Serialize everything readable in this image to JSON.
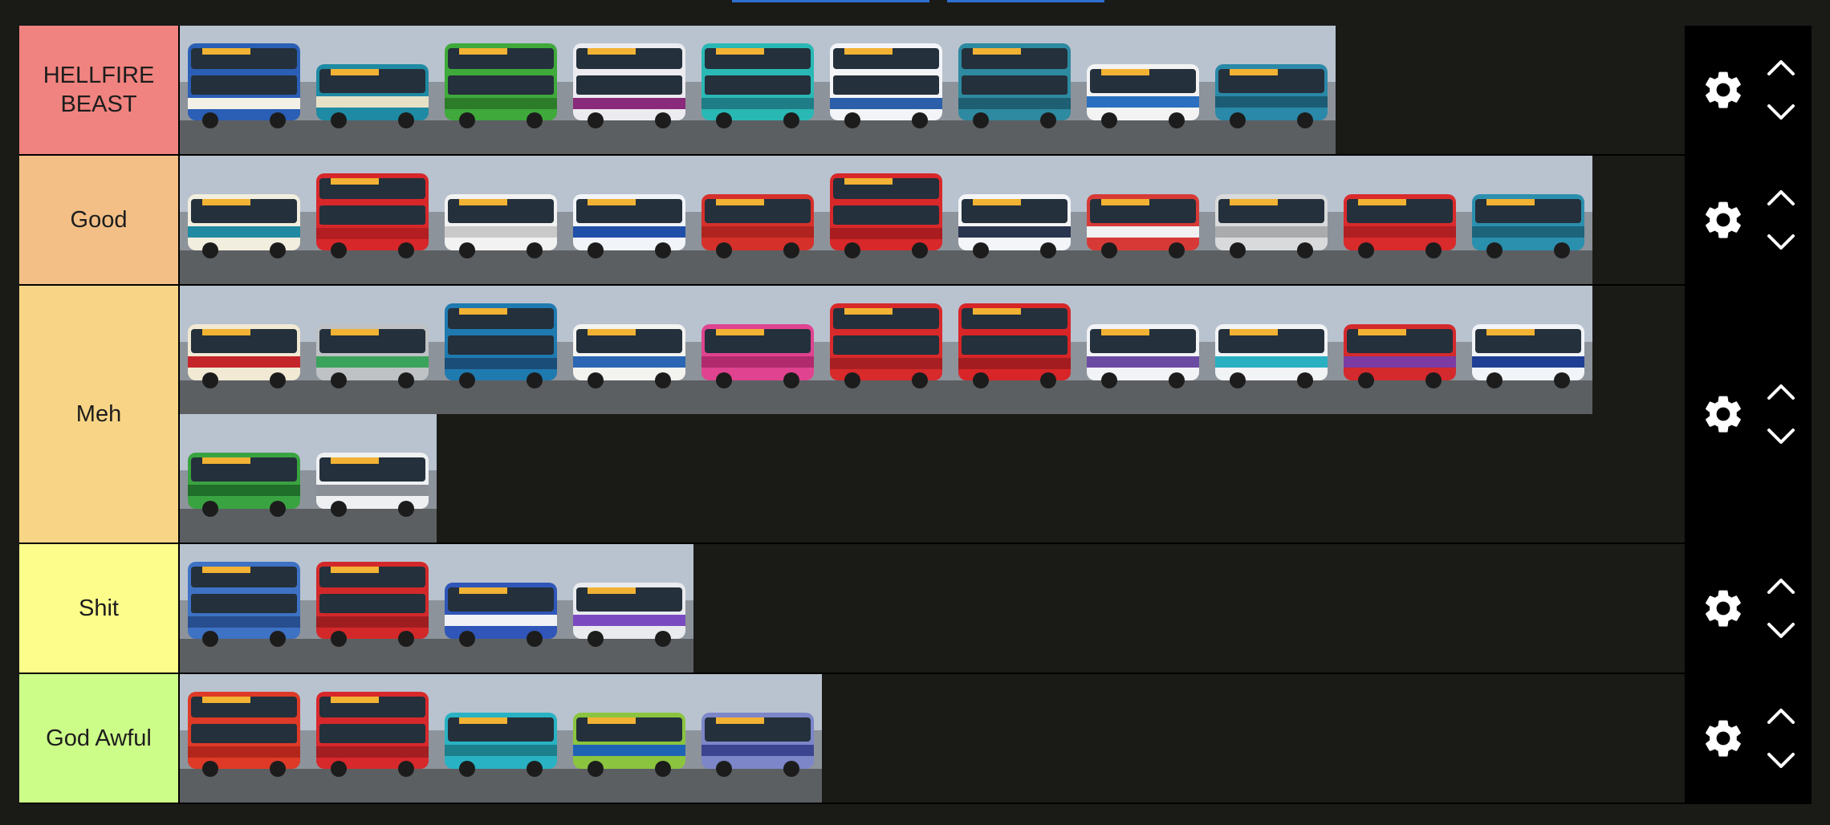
{
  "colors": {
    "background": "#1a1a17",
    "controls": "#000000",
    "icon": "#ffffff"
  },
  "tiers": [
    {
      "label": "HELLFIRE BEAST",
      "color": "#f0837f",
      "items": [
        {
          "body": "#2a5fb5",
          "band": "#f3f0e6",
          "deck": "double"
        },
        {
          "body": "#1e8aa3",
          "band": "#e6e1c6",
          "deck": "single"
        },
        {
          "body": "#3fa93b",
          "band": "#2d7c2a",
          "deck": "double"
        },
        {
          "body": "#ecebf0",
          "band": "#8a2a7a",
          "deck": "double"
        },
        {
          "body": "#2ab8b5",
          "band": "#1e7d86",
          "deck": "double"
        },
        {
          "body": "#f2f4f8",
          "band": "#2b5fa9",
          "deck": "double"
        },
        {
          "body": "#2e8aa0",
          "band": "#1e5f73",
          "deck": "double"
        },
        {
          "body": "#f3f3f3",
          "band": "#2a6fc0",
          "deck": "single"
        },
        {
          "body": "#2a88a8",
          "band": "#1b5b74",
          "deck": "single"
        }
      ]
    },
    {
      "label": "Good",
      "color": "#f3bf86",
      "items": [
        {
          "body": "#f2eedf",
          "band": "#1f8aa1",
          "deck": "single"
        },
        {
          "body": "#d7272a",
          "band": "#b41e22",
          "deck": "double"
        },
        {
          "body": "#f2f2f2",
          "band": "#c9c9c9",
          "deck": "single"
        },
        {
          "body": "#f1f4f8",
          "band": "#1f4fa8",
          "deck": "single"
        },
        {
          "body": "#d6302b",
          "band": "#b0241f",
          "deck": "single"
        },
        {
          "body": "#d8282a",
          "band": "#a91d20",
          "deck": "double"
        },
        {
          "body": "#f4f5f8",
          "band": "#2a3550",
          "deck": "single"
        },
        {
          "body": "#d73a36",
          "band": "#f1f1f1",
          "deck": "single"
        },
        {
          "body": "#d9dadb",
          "band": "#a9abad",
          "deck": "single"
        },
        {
          "body": "#d92a2c",
          "band": "#b01f22",
          "deck": "single"
        },
        {
          "body": "#2b8fae",
          "band": "#1d647a",
          "deck": "single"
        }
      ]
    },
    {
      "label": "Meh",
      "color": "#f8d586",
      "items": [
        {
          "body": "#f1e9d3",
          "band": "#c4252a",
          "deck": "single"
        },
        {
          "body": "#bfc2c4",
          "band": "#3aa35c",
          "deck": "single"
        },
        {
          "body": "#1f7ab0",
          "band": "#1a4d78",
          "deck": "double"
        },
        {
          "body": "#f3f3f0",
          "band": "#2a66b3",
          "deck": "single"
        },
        {
          "body": "#e0438f",
          "band": "#b12a6d",
          "deck": "single"
        },
        {
          "body": "#d8292b",
          "band": "#a71f22",
          "deck": "double"
        },
        {
          "body": "#d82528",
          "band": "#a31c1f",
          "deck": "double"
        },
        {
          "body": "#f2f3f6",
          "band": "#6b4aa3",
          "deck": "single"
        },
        {
          "body": "#f1f3f5",
          "band": "#2bb0c2",
          "deck": "single"
        },
        {
          "body": "#d42a2d",
          "band": "#7b3ba3",
          "deck": "single"
        },
        {
          "body": "#f1f4f8",
          "band": "#1f3f95",
          "deck": "single"
        },
        {
          "body": "#3aa341",
          "band": "#1f6e2a",
          "deck": "single"
        },
        {
          "body": "#eef0f2",
          "band": "#8a8f96",
          "deck": "single"
        }
      ]
    },
    {
      "label": "Shit",
      "color": "#fcfd8b",
      "items": [
        {
          "body": "#3d72c4",
          "band": "#274e8e",
          "deck": "double"
        },
        {
          "body": "#d3282a",
          "band": "#9e1e20",
          "deck": "double"
        },
        {
          "body": "#2f56b8",
          "band": "#f0f2f6",
          "deck": "single"
        },
        {
          "body": "#e9ebef",
          "band": "#7a4bc0",
          "deck": "single"
        }
      ]
    },
    {
      "label": "God Awful",
      "color": "#cdfd89",
      "items": [
        {
          "body": "#de3a27",
          "band": "#b3261c",
          "deck": "double"
        },
        {
          "body": "#d7282b",
          "band": "#a51e21",
          "deck": "double"
        },
        {
          "body": "#29b2c3",
          "band": "#1c7f8c",
          "deck": "single"
        },
        {
          "body": "#8bc53f",
          "band": "#1f63b4",
          "deck": "single"
        },
        {
          "body": "#7c86c8",
          "band": "#3b458f",
          "deck": "single"
        }
      ]
    }
  ]
}
